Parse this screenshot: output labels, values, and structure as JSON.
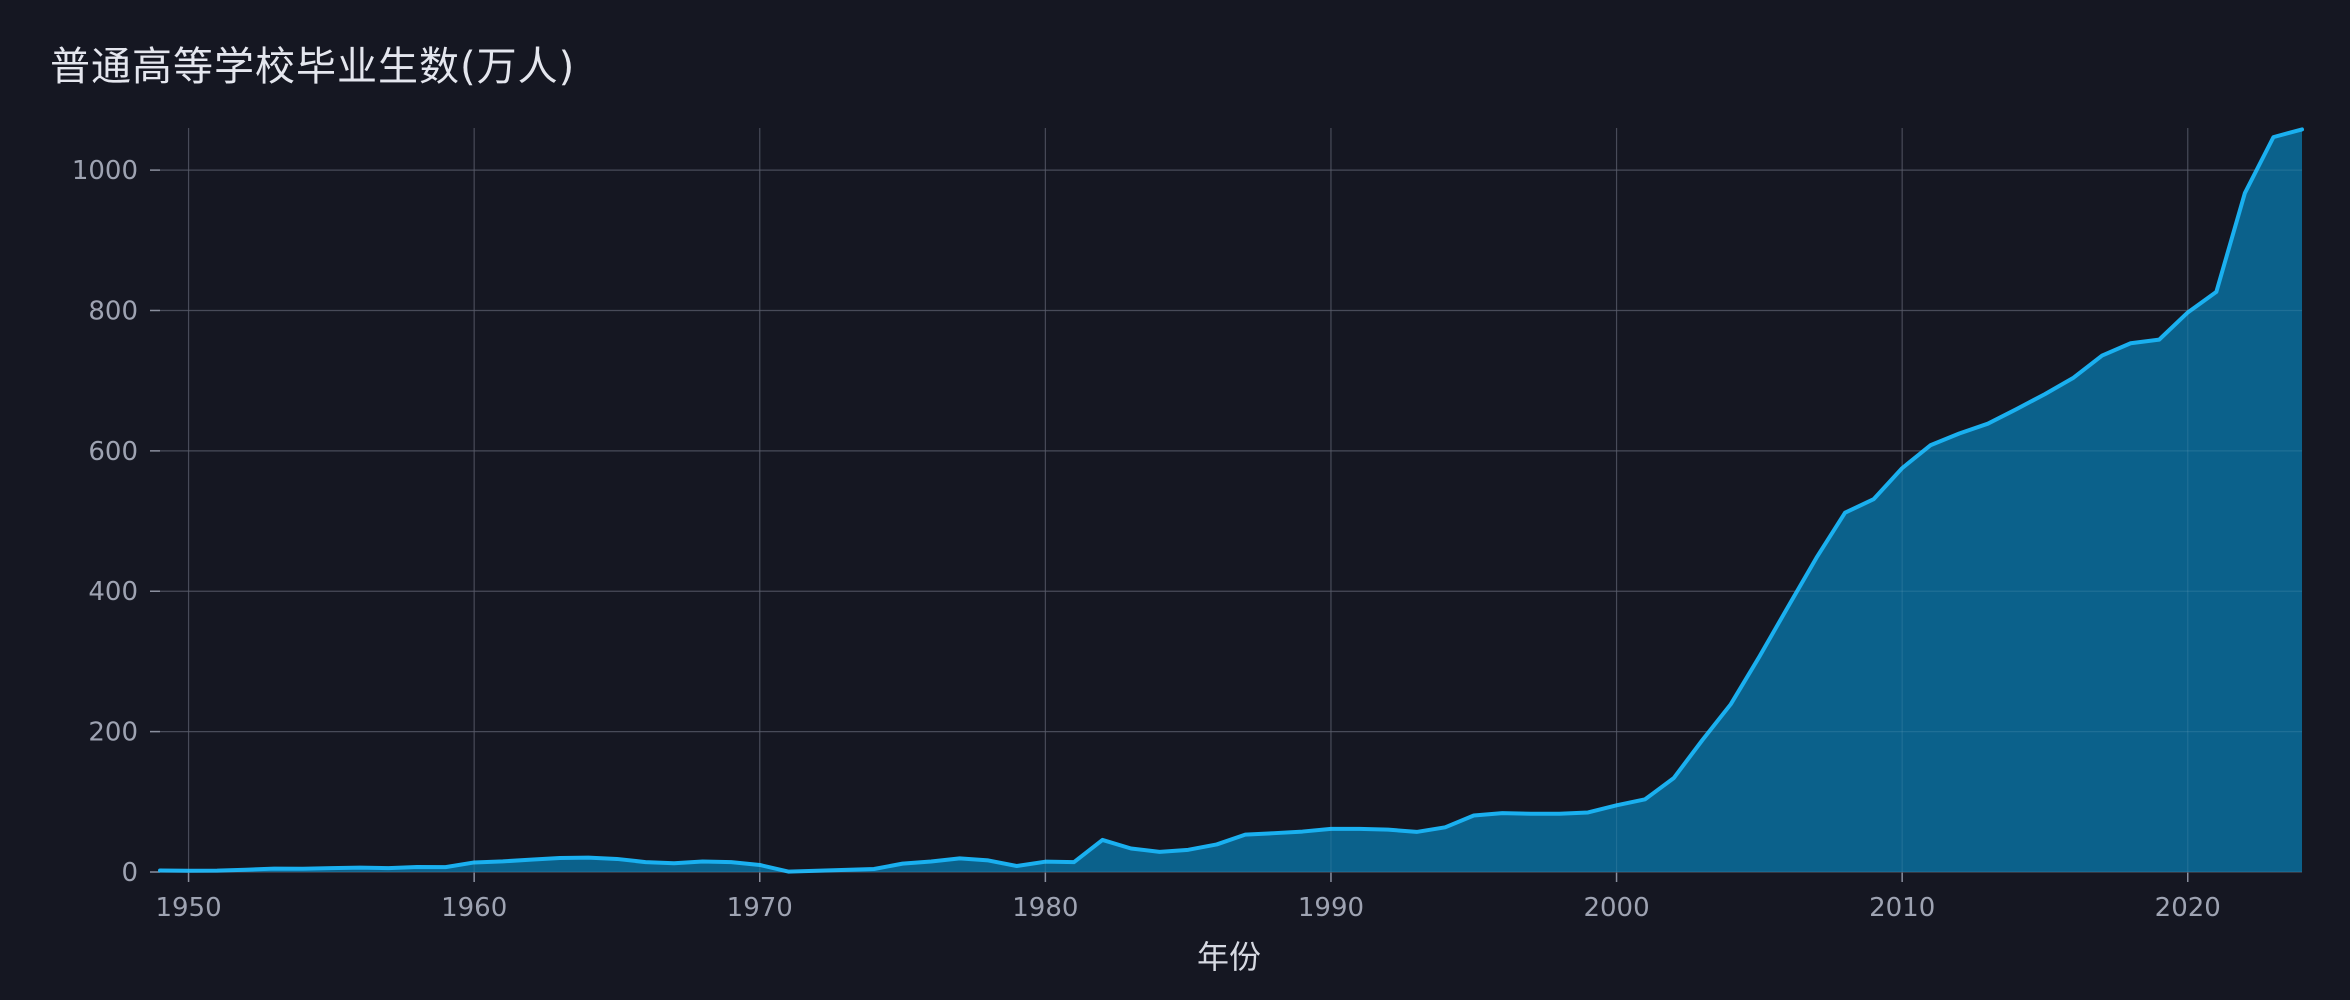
{
  "chart_data": {
    "type": "area",
    "title": "普通高等学校毕业生数(万人)",
    "xlabel": "年份",
    "ylabel": "",
    "xlim": [
      1949,
      2024
    ],
    "ylim": [
      0,
      1060
    ],
    "x_ticks": [
      1950,
      1960,
      1970,
      1980,
      1990,
      2000,
      2010,
      2020
    ],
    "y_ticks": [
      0,
      200,
      400,
      600,
      800,
      1000
    ],
    "grid": true,
    "legend": "none",
    "colors": {
      "background": "#151722",
      "line": "#1ab0f0",
      "fill": "#0b6591",
      "grid": "#393c4b",
      "tick": "#8a8f9e"
    },
    "series": [
      {
        "x": [
          1949,
          1950,
          1951,
          1952,
          1953,
          1954,
          1955,
          1956,
          1957,
          1958,
          1959,
          1960,
          1961,
          1962,
          1963,
          1964,
          1965,
          1966,
          1967,
          1968,
          1969,
          1970,
          1971,
          1972,
          1973,
          1974,
          1975,
          1976,
          1977,
          1978,
          1979,
          1980,
          1981,
          1982,
          1983,
          1984,
          1985,
          1986,
          1987,
          1988,
          1989,
          1990,
          1991,
          1992,
          1993,
          1994,
          1995,
          1996,
          1997,
          1998,
          1999,
          2000,
          2001,
          2002,
          2003,
          2004,
          2005,
          2006,
          2007,
          2008,
          2009,
          2010,
          2011,
          2012,
          2013,
          2014,
          2015,
          2016,
          2017,
          2018,
          2019,
          2020,
          2021,
          2022,
          2023,
          2024
        ],
        "values": [
          2.1,
          1.8,
          1.9,
          3.2,
          4.8,
          4.7,
          5.5,
          6.3,
          5.6,
          7.2,
          7.0,
          13.6,
          15.1,
          17.7,
          20.0,
          20.4,
          18.6,
          14.1,
          12.5,
          15.0,
          14.0,
          10.0,
          0.6,
          1.7,
          3.0,
          4.3,
          11.9,
          14.9,
          19.4,
          16.5,
          8.5,
          14.7,
          14.0,
          45.7,
          33.5,
          28.7,
          31.6,
          39.3,
          53.2,
          55.3,
          57.6,
          61.4,
          61.4,
          60.4,
          57.1,
          63.7,
          80.5,
          83.9,
          82.9,
          83.0,
          84.8,
          95.0,
          103.6,
          133.7,
          187.7,
          239.1,
          306.8,
          377.5,
          447.8,
          511.9,
          531.1,
          575.4,
          608.2,
          624.7,
          638.7,
          659.4,
          680.9,
          704.2,
          735.8,
          753.3,
          758.5,
          797.2,
          826.5,
          967.3,
          1047.0,
          1058.0
        ]
      }
    ]
  }
}
